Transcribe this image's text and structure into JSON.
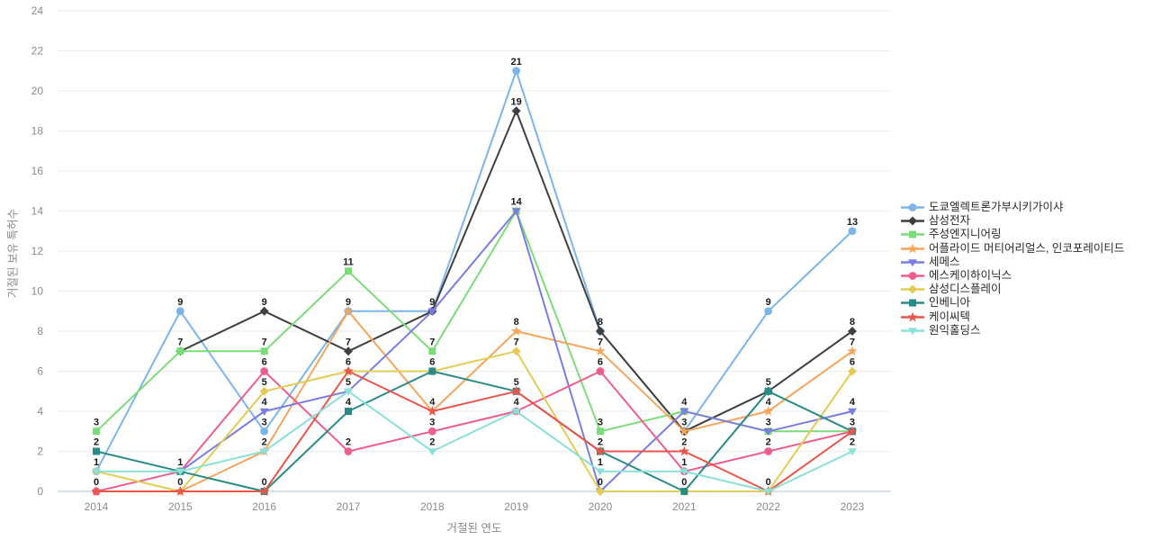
{
  "chart_data": {
    "type": "line",
    "title": "",
    "xlabel": "거절된 연도",
    "ylabel": "거절된 보유 특허수",
    "categories": [
      2014,
      2015,
      2016,
      2017,
      2018,
      2019,
      2020,
      2021,
      2022,
      2023
    ],
    "yticks": [
      0,
      2,
      4,
      6,
      8,
      10,
      12,
      14,
      16,
      18,
      20,
      22,
      24
    ],
    "ylim": [
      0,
      24
    ],
    "grid": true,
    "legend_position": "right",
    "data_labels": true,
    "series": [
      {
        "id": "tokyo-electron",
        "name": "도쿄엘렉트론가부시키가이샤",
        "color": "#7cb5e8",
        "marker": "circle",
        "values": [
          1,
          9,
          3,
          9,
          9,
          21,
          8,
          3,
          9,
          13
        ]
      },
      {
        "id": "samsung-electronics",
        "name": "삼성전자",
        "color": "#404040",
        "marker": "diamond",
        "values": [
          null,
          7,
          9,
          7,
          9,
          19,
          8,
          3,
          5,
          8
        ]
      },
      {
        "id": "jusung-engineering",
        "name": "주성엔지니어링",
        "color": "#7ddc7a",
        "marker": "square",
        "values": [
          3,
          7,
          7,
          11,
          7,
          14,
          3,
          4,
          3,
          3
        ]
      },
      {
        "id": "applied-materials",
        "name": "어플라이드 머티어리얼스, 인코포레이티드",
        "color": "#f5a55c",
        "marker": "star",
        "values": [
          null,
          0,
          2,
          9,
          4,
          8,
          7,
          3,
          4,
          7
        ]
      },
      {
        "id": "semes",
        "name": "세메스",
        "color": "#7b7de0",
        "marker": "triangle-down",
        "values": [
          null,
          1,
          4,
          5,
          9,
          14,
          0,
          4,
          3,
          4
        ]
      },
      {
        "id": "sk-hynix",
        "name": "에스케이하이닉스",
        "color": "#ec5f8d",
        "marker": "circle",
        "values": [
          0,
          1,
          6,
          2,
          3,
          4,
          6,
          1,
          2,
          3
        ]
      },
      {
        "id": "samsung-display",
        "name": "삼성디스플레이",
        "color": "#e3cc55",
        "marker": "diamond",
        "values": [
          1,
          0,
          5,
          6,
          6,
          7,
          0,
          0,
          0,
          6
        ]
      },
      {
        "id": "invenia",
        "name": "인베니아",
        "color": "#2a8a85",
        "marker": "square",
        "values": [
          2,
          1,
          0,
          4,
          6,
          5,
          2,
          0,
          5,
          3
        ]
      },
      {
        "id": "kctech",
        "name": "케이씨텍",
        "color": "#e8564c",
        "marker": "star",
        "values": [
          0,
          0,
          0,
          6,
          4,
          5,
          2,
          2,
          0,
          3
        ]
      },
      {
        "id": "wonik-holdings",
        "name": "원익홀딩스",
        "color": "#8ce0d8",
        "marker": "triangle-down",
        "values": [
          1,
          1,
          2,
          5,
          2,
          4,
          1,
          1,
          0,
          2
        ]
      }
    ],
    "style": {
      "grid_color": "#ededed",
      "zero_line_color": "#ccd6eb",
      "tick_color": "#8c8c8c",
      "data_label_color": "#1a1a1a",
      "background": "#ffffff"
    }
  }
}
